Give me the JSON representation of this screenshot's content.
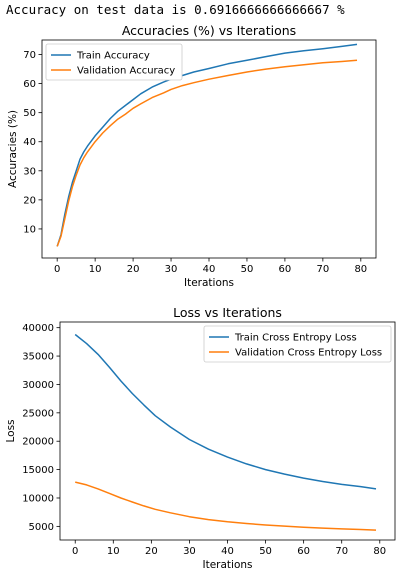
{
  "header": {
    "output_text": "Accuracy on test data is 0.6916666666666667 %"
  },
  "chart_data": [
    {
      "type": "line",
      "title": "Accuracies (%) vs Iterations",
      "xlabel": "Iterations",
      "ylabel": "Accuracies (%)",
      "xlim": [
        -4,
        84
      ],
      "ylim": [
        0,
        75
      ],
      "xticks": [
        0,
        10,
        20,
        30,
        40,
        50,
        60,
        70,
        80
      ],
      "yticks": [
        10,
        20,
        30,
        40,
        50,
        60,
        70
      ],
      "legend_position": "upper-left",
      "grid": false,
      "series": [
        {
          "name": "Train Accuracy",
          "color": "#1f77b4",
          "x": [
            0,
            1,
            2,
            3,
            4,
            5,
            6,
            7,
            8,
            10,
            12,
            14,
            16,
            18,
            20,
            22,
            25,
            28,
            30,
            33,
            36,
            40,
            45,
            50,
            55,
            60,
            65,
            70,
            75,
            79
          ],
          "values": [
            4,
            8,
            15,
            21,
            26,
            30,
            34,
            36.5,
            38.5,
            42,
            45,
            48,
            50.5,
            52.5,
            54.5,
            56.5,
            58.8,
            60.5,
            61.5,
            62.8,
            64,
            65.2,
            66.8,
            68,
            69.3,
            70.5,
            71.3,
            72,
            72.8,
            73.5
          ]
        },
        {
          "name": "Validation Accuracy",
          "color": "#ff7f0e",
          "x": [
            0,
            1,
            2,
            3,
            4,
            5,
            6,
            7,
            8,
            10,
            12,
            14,
            16,
            18,
            20,
            22,
            25,
            28,
            30,
            33,
            36,
            40,
            45,
            50,
            55,
            60,
            65,
            70,
            75,
            79
          ],
          "values": [
            4,
            7.5,
            13.5,
            19.5,
            24.5,
            28.5,
            32,
            34.5,
            36.5,
            40,
            43,
            45.5,
            47.8,
            49.5,
            51.5,
            53,
            55.2,
            56.8,
            58,
            59.3,
            60.3,
            61.5,
            62.8,
            64,
            65,
            65.8,
            66.5,
            67.2,
            67.6,
            68
          ]
        }
      ]
    },
    {
      "type": "line",
      "title": "Loss vs Iterations",
      "xlabel": "Iterations",
      "ylabel": "Loss",
      "xlim": [
        -4,
        84
      ],
      "ylim": [
        2600,
        41000
      ],
      "xticks": [
        0,
        10,
        20,
        30,
        40,
        50,
        60,
        70,
        80
      ],
      "yticks": [
        5000,
        10000,
        15000,
        20000,
        25000,
        30000,
        35000,
        40000
      ],
      "legend_position": "upper-right",
      "grid": false,
      "series": [
        {
          "name": "Train Cross Entropy Loss",
          "color": "#1f77b4",
          "x": [
            0,
            3,
            6,
            9,
            12,
            15,
            18,
            21,
            25,
            30,
            35,
            40,
            45,
            50,
            55,
            60,
            65,
            70,
            75,
            79
          ],
          "values": [
            38800,
            37200,
            35300,
            33000,
            30600,
            28400,
            26400,
            24500,
            22500,
            20300,
            18600,
            17200,
            16000,
            15000,
            14200,
            13500,
            12900,
            12400,
            12000,
            11600
          ]
        },
        {
          "name": "Validation Cross Entropy Loss",
          "color": "#ff7f0e",
          "x": [
            0,
            3,
            6,
            9,
            12,
            15,
            18,
            21,
            25,
            30,
            35,
            40,
            45,
            50,
            55,
            60,
            65,
            70,
            75,
            79
          ],
          "values": [
            12800,
            12300,
            11600,
            10800,
            10000,
            9300,
            8600,
            8000,
            7400,
            6700,
            6200,
            5800,
            5500,
            5250,
            5050,
            4850,
            4700,
            4550,
            4450,
            4350
          ]
        }
      ]
    }
  ]
}
